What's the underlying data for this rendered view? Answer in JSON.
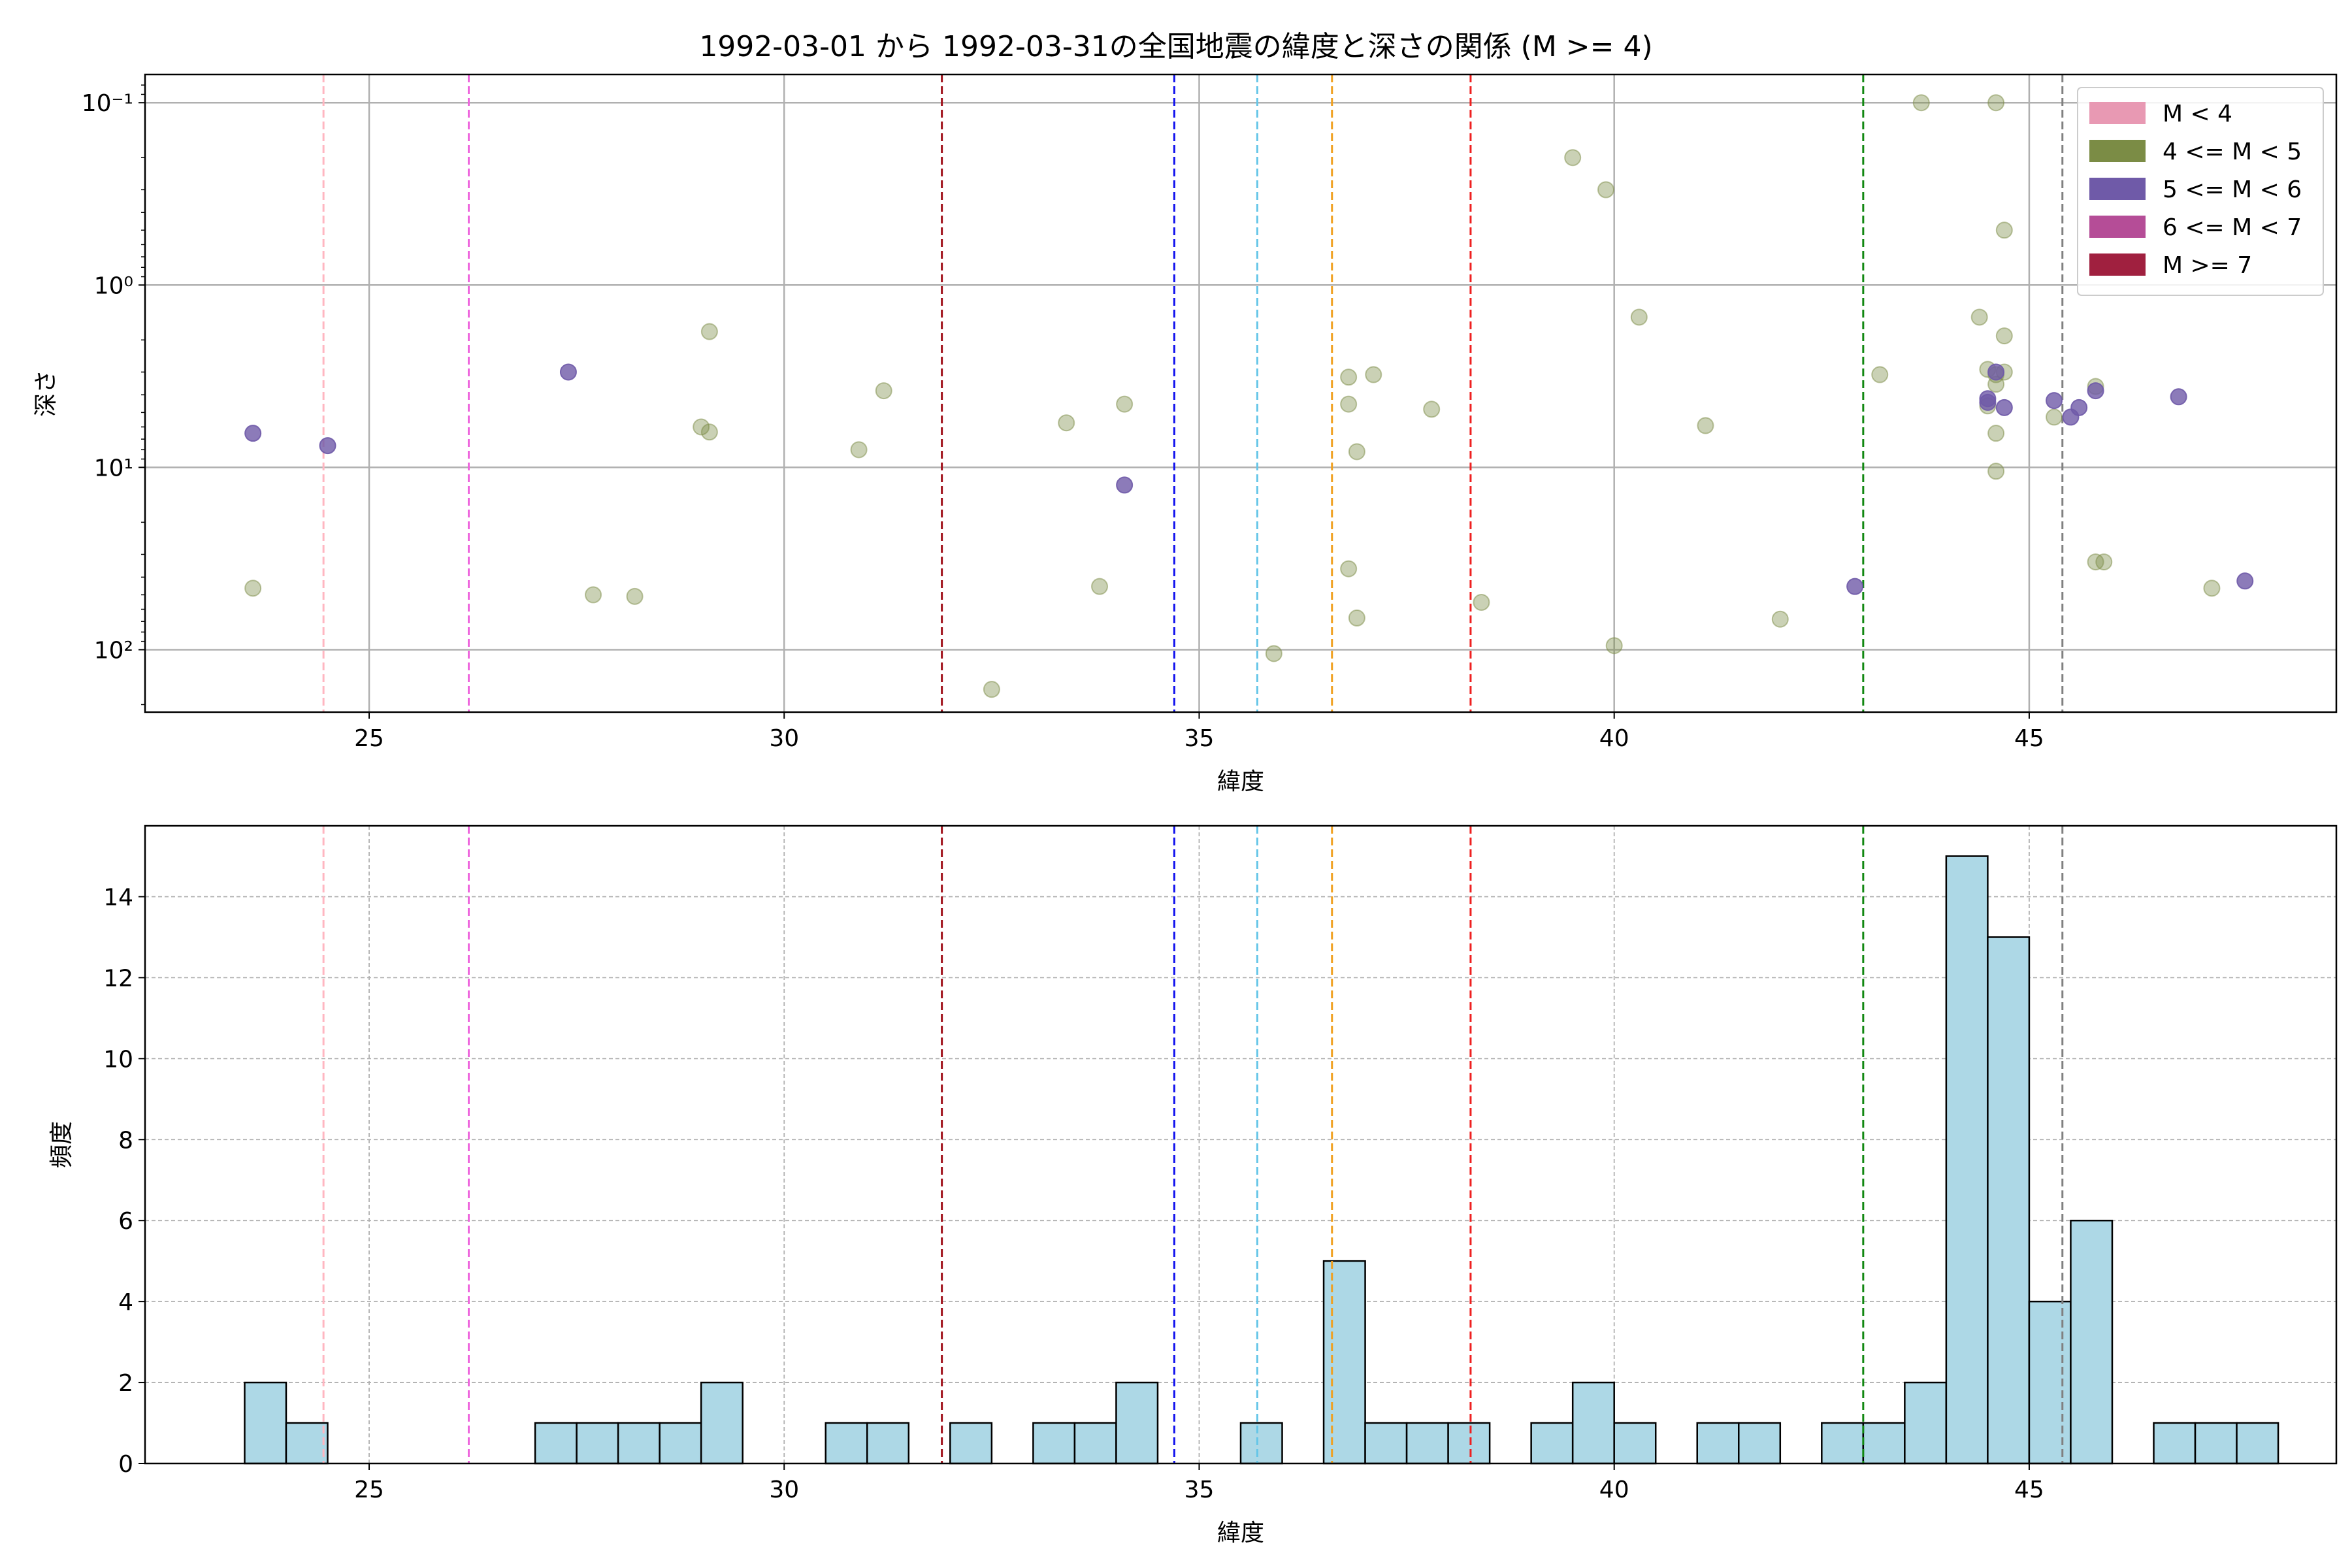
{
  "colors": {
    "scatter_m4_5": "#7b8c45",
    "scatter_m5_6": "#6f5aa8",
    "hist_bar_fill": "#add8e6",
    "hist_bar_edge": "#000000",
    "grid": "#b0b0b0"
  },
  "chart_data": [
    {
      "type": "scatter",
      "title": "1992-03-01 から 1992-03-31の全国地震の緯度と深さの関係 (M >= 4)",
      "xlabel": "緯度",
      "ylabel": "深さ",
      "xlim": [
        22.3,
        48.7
      ],
      "ylim": [
        0.07,
        220
      ],
      "y_scale": "log",
      "y_inverted": true,
      "grid": true,
      "xticks": [
        25,
        30,
        35,
        40,
        45
      ],
      "yticks": [
        {
          "value": 0.1,
          "label": "10⁻¹"
        },
        {
          "value": 1,
          "label": "10⁰"
        },
        {
          "value": 10,
          "label": "10¹"
        },
        {
          "value": 100,
          "label": "10²"
        }
      ],
      "legend": {
        "position": "top-right",
        "entries": [
          {
            "label": "M < 4",
            "color": "#e899b3"
          },
          {
            "label": "4 <= M < 5",
            "color": "#7b8c45"
          },
          {
            "label": "5 <= M < 6",
            "color": "#6f5aa8"
          },
          {
            "label": "6 <= M < 7",
            "color": "#b54d97"
          },
          {
            "label": "M >= 7",
            "color": "#a0203f"
          }
        ]
      },
      "vlines": [
        {
          "x": 24.45,
          "color": "#ffb6c1"
        },
        {
          "x": 26.2,
          "color": "#ee66dd"
        },
        {
          "x": 31.9,
          "color": "#a0101a"
        },
        {
          "x": 34.7,
          "color": "#1010ee"
        },
        {
          "x": 35.7,
          "color": "#66c6e8"
        },
        {
          "x": 36.6,
          "color": "#f0a020"
        },
        {
          "x": 38.27,
          "color": "#ee2020"
        },
        {
          "x": 43.0,
          "color": "#118811"
        },
        {
          "x": 45.4,
          "color": "#808080"
        }
      ],
      "series": [
        {
          "class": "4 <= M < 5",
          "points": [
            [
              23.6,
              46
            ],
            [
              27.7,
              50
            ],
            [
              28.2,
              51
            ],
            [
              29.0,
              6
            ],
            [
              29.1,
              1.8
            ],
            [
              29.1,
              6.4
            ],
            [
              30.9,
              8
            ],
            [
              31.2,
              3.8
            ],
            [
              32.5,
              165
            ],
            [
              33.4,
              5.7
            ],
            [
              33.8,
              45
            ],
            [
              34.1,
              4.5
            ],
            [
              35.9,
              105
            ],
            [
              36.8,
              3.2
            ],
            [
              36.8,
              4.5
            ],
            [
              36.8,
              36
            ],
            [
              36.9,
              8.2
            ],
            [
              36.9,
              67
            ],
            [
              37.1,
              3.1
            ],
            [
              37.8,
              4.8
            ],
            [
              38.4,
              55
            ],
            [
              39.5,
              0.2
            ],
            [
              39.9,
              0.3
            ],
            [
              40.0,
              95
            ],
            [
              40.3,
              1.5
            ],
            [
              41.1,
              5.9
            ],
            [
              42.0,
              68
            ],
            [
              43.2,
              3.1
            ],
            [
              43.7,
              0.1
            ],
            [
              44.4,
              1.5
            ],
            [
              44.5,
              2.9
            ],
            [
              44.5,
              4.6
            ],
            [
              44.6,
              0.1
            ],
            [
              44.6,
              3.1
            ],
            [
              44.6,
              3.5
            ],
            [
              44.6,
              6.5
            ],
            [
              44.6,
              10.5
            ],
            [
              44.7,
              0.5
            ],
            [
              44.7,
              3.0
            ],
            [
              44.7,
              1.9
            ],
            [
              45.3,
              5.3
            ],
            [
              45.8,
              33
            ],
            [
              45.8,
              3.6
            ],
            [
              45.9,
              33
            ],
            [
              47.2,
              46
            ]
          ]
        },
        {
          "class": "5 <= M < 6",
          "points": [
            [
              23.6,
              6.5
            ],
            [
              24.5,
              7.6
            ],
            [
              27.4,
              3.0
            ],
            [
              34.1,
              12.5
            ],
            [
              42.9,
              45
            ],
            [
              44.5,
              4.2
            ],
            [
              44.5,
              4.4
            ],
            [
              44.6,
              3.0
            ],
            [
              44.7,
              4.7
            ],
            [
              45.3,
              4.3
            ],
            [
              45.5,
              5.3
            ],
            [
              45.6,
              4.7
            ],
            [
              45.8,
              3.8
            ],
            [
              46.8,
              4.1
            ],
            [
              47.6,
              42
            ]
          ]
        }
      ]
    },
    {
      "type": "bar",
      "subtype": "histogram",
      "xlabel": "緯度",
      "ylabel": "頻度",
      "xlim": [
        22.3,
        48.7
      ],
      "ylim": [
        0,
        15.75
      ],
      "grid": true,
      "xticks": [
        25,
        30,
        35,
        40,
        45
      ],
      "yticks": [
        0,
        2,
        4,
        6,
        8,
        10,
        12,
        14
      ],
      "bin_start": 23.5,
      "bin_width": 0.5,
      "counts": [
        2,
        1,
        0,
        0,
        0,
        0,
        0,
        1,
        1,
        1,
        1,
        2,
        0,
        0,
        1,
        1,
        0,
        1,
        0,
        1,
        1,
        2,
        0,
        0,
        1,
        0,
        5,
        1,
        1,
        1,
        0,
        1,
        2,
        1,
        0,
        1,
        1,
        0,
        1,
        1,
        2,
        15,
        13,
        4,
        6,
        0,
        1,
        1,
        1
      ],
      "vlines": [
        {
          "x": 24.45,
          "color": "#ffb6c1"
        },
        {
          "x": 26.2,
          "color": "#ee66dd"
        },
        {
          "x": 31.9,
          "color": "#a0101a"
        },
        {
          "x": 34.7,
          "color": "#1010ee"
        },
        {
          "x": 35.7,
          "color": "#66c6e8"
        },
        {
          "x": 36.6,
          "color": "#f0a020"
        },
        {
          "x": 38.27,
          "color": "#ee2020"
        },
        {
          "x": 43.0,
          "color": "#118811"
        },
        {
          "x": 45.4,
          "color": "#808080"
        }
      ]
    }
  ]
}
